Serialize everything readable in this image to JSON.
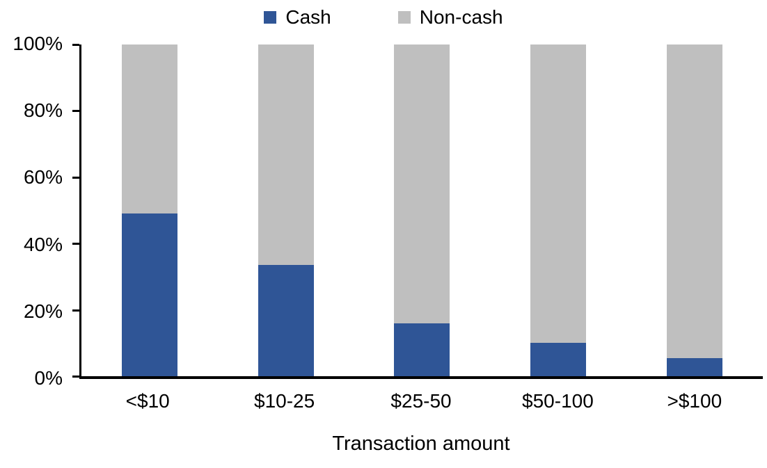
{
  "chart_data": {
    "type": "bar",
    "variant": "stacked-100",
    "orientation": "vertical",
    "categories": [
      "<$10",
      "$10-25",
      "$25-50",
      "$50-100",
      ">$100"
    ],
    "series": [
      {
        "name": "Cash",
        "color": "#2F5596",
        "values": [
          49,
          33.5,
          16,
          10,
          5.5
        ]
      },
      {
        "name": "Non-cash",
        "color": "#BFBFBF",
        "values": [
          51,
          66.5,
          84,
          90,
          94.5
        ]
      }
    ],
    "title": "",
    "xlabel": "Transaction amount",
    "ylabel": "",
    "ylim": [
      0,
      100
    ],
    "yticks": [
      "0%",
      "20%",
      "40%",
      "60%",
      "80%",
      "100%"
    ],
    "legend_position": "top-center",
    "grid": false,
    "axis_color": "#000000",
    "background_color": "#FFFFFF"
  }
}
